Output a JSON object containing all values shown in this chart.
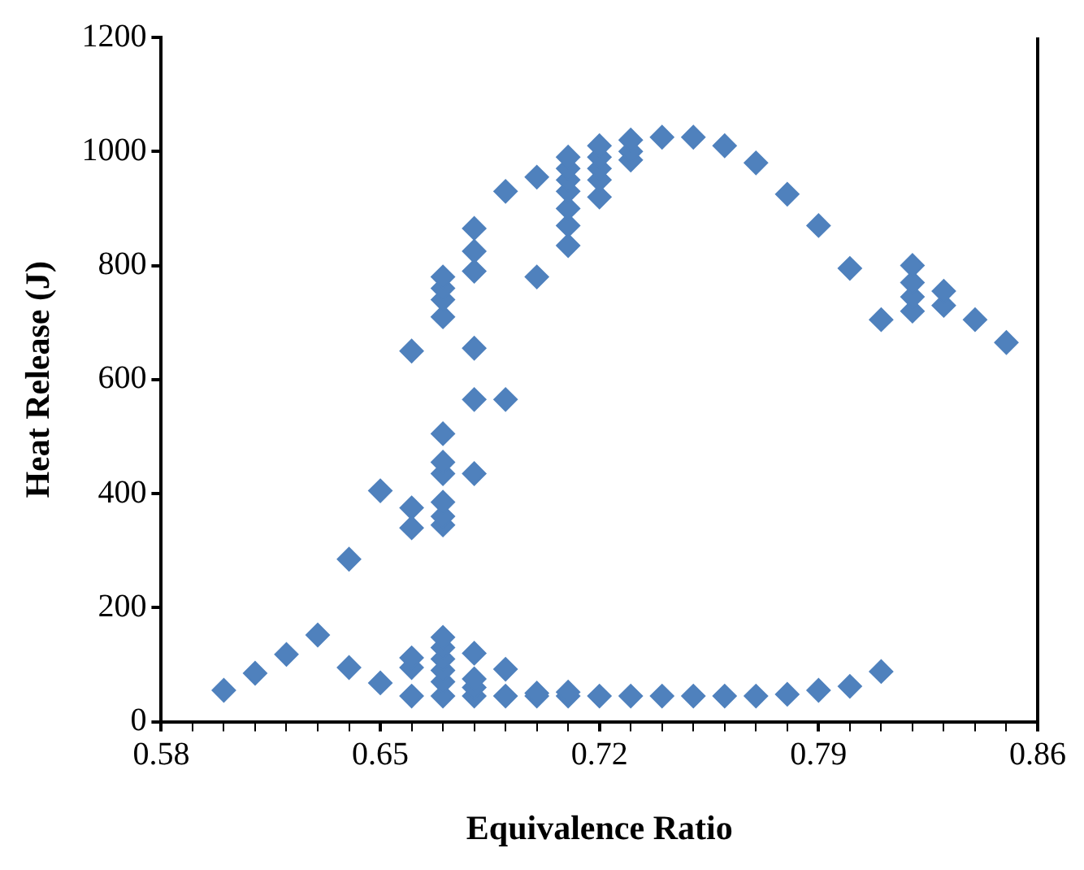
{
  "chart_data": {
    "type": "scatter",
    "xlabel": "Equivalence Ratio",
    "ylabel": "Heat Release (J)",
    "marker": "diamond",
    "grid": false,
    "legend": false,
    "xlim": [
      0.58,
      0.86
    ],
    "xticks": [
      0.58,
      {
        "value": 0.59,
        "label": null
      },
      {
        "value": 0.6,
        "label": null
      },
      {
        "value": 0.61,
        "label": null
      },
      {
        "value": 0.62,
        "label": null
      },
      {
        "value": 0.63,
        "label": null
      },
      {
        "value": 0.64,
        "label": null
      },
      0.65,
      {
        "value": 0.66,
        "label": null
      },
      {
        "value": 0.67,
        "label": null
      },
      {
        "value": 0.68,
        "label": null
      },
      {
        "value": 0.69,
        "label": null
      },
      {
        "value": 0.7,
        "label": null
      },
      {
        "value": 0.71,
        "label": null
      },
      0.72,
      {
        "value": 0.73,
        "label": null
      },
      {
        "value": 0.74,
        "label": null
      },
      {
        "value": 0.75,
        "label": null
      },
      {
        "value": 0.76,
        "label": null
      },
      {
        "value": 0.77,
        "label": null
      },
      {
        "value": 0.78,
        "label": null
      },
      0.79,
      {
        "value": 0.8,
        "label": null
      },
      {
        "value": 0.81,
        "label": null
      },
      {
        "value": 0.82,
        "label": null
      },
      {
        "value": 0.83,
        "label": null
      },
      {
        "value": 0.84,
        "label": null
      },
      {
        "value": 0.85,
        "label": null
      },
      0.86
    ],
    "ylim": [
      0,
      1200
    ],
    "yticks": [
      0,
      200,
      400,
      600,
      800,
      1000,
      1200
    ],
    "series": [
      {
        "color": "#4f81bd",
        "x": [
          0.6,
          0.61,
          0.62,
          0.63,
          0.64,
          0.65,
          0.66,
          0.66,
          0.66,
          0.67,
          0.67,
          0.67,
          0.67,
          0.67,
          0.67,
          0.68,
          0.68,
          0.68,
          0.68,
          0.69,
          0.69,
          0.7,
          0.7,
          0.71,
          0.71,
          0.72,
          0.73,
          0.74,
          0.75,
          0.76,
          0.77,
          0.78,
          0.79,
          0.8,
          0.81,
          0.64,
          0.65,
          0.66,
          0.66,
          0.66,
          0.67,
          0.67,
          0.67,
          0.67,
          0.67,
          0.67,
          0.67,
          0.67,
          0.67,
          0.67,
          0.68,
          0.68,
          0.68,
          0.68,
          0.68,
          0.68,
          0.69,
          0.69,
          0.7,
          0.7,
          0.71,
          0.71,
          0.71,
          0.71,
          0.71,
          0.71,
          0.71,
          0.72,
          0.72,
          0.72,
          0.72,
          0.72,
          0.73,
          0.73,
          0.73,
          0.74,
          0.75,
          0.76,
          0.77,
          0.78,
          0.79,
          0.8,
          0.81,
          0.82,
          0.82,
          0.82,
          0.82,
          0.83,
          0.83,
          0.84,
          0.85
        ],
        "values": [
          55,
          85,
          118,
          152,
          95,
          68,
          45,
          95,
          112,
          45,
          70,
          90,
          110,
          130,
          148,
          45,
          60,
          75,
          120,
          45,
          92,
          45,
          50,
          45,
          52,
          45,
          45,
          45,
          45,
          45,
          45,
          48,
          55,
          62,
          88,
          285,
          405,
          340,
          375,
          650,
          345,
          360,
          385,
          435,
          455,
          505,
          710,
          740,
          760,
          780,
          435,
          565,
          655,
          790,
          825,
          865,
          565,
          930,
          780,
          955,
          835,
          870,
          900,
          930,
          950,
          970,
          990,
          920,
          950,
          970,
          990,
          1010,
          985,
          1000,
          1020,
          1025,
          1025,
          1010,
          980,
          925,
          870,
          795,
          705,
          720,
          745,
          770,
          800,
          730,
          755,
          705,
          665
        ]
      }
    ]
  }
}
